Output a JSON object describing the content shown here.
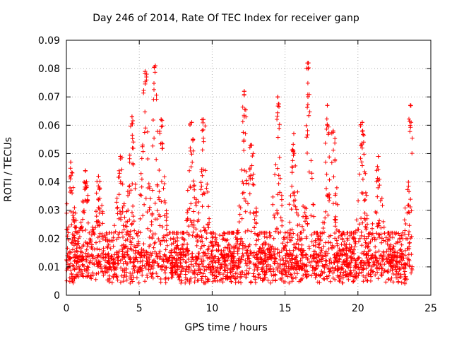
{
  "chart_data": {
    "type": "scatter",
    "title": "Day 246 of 2014, Rate Of TEC Index for receiver ganp",
    "xlabel": "GPS time / hours",
    "ylabel": "ROTI / TECUs",
    "xlim": [
      0,
      25
    ],
    "ylim": [
      0,
      0.09
    ],
    "xticks": [
      0,
      5,
      10,
      15,
      20,
      25
    ],
    "xtick_labels": [
      "0",
      "5",
      "10",
      "15",
      "20",
      "25"
    ],
    "yticks": [
      0,
      0.01,
      0.02,
      0.03,
      0.04,
      0.05,
      0.06,
      0.07,
      0.08,
      0.09
    ],
    "ytick_labels": [
      "0",
      "0.01",
      "0.02",
      "0.03",
      "0.04",
      "0.05",
      "0.06",
      "0.07",
      "0.08",
      "0.09"
    ],
    "grid": true,
    "marker": "+",
    "color": "#ff0000",
    "series": [
      {
        "name": "ROTI",
        "x_range": [
          0,
          23.75
        ],
        "baseline_median": 0.012,
        "peaks": [
          {
            "x": 0.3,
            "y": 0.047
          },
          {
            "x": 1.3,
            "y": 0.044
          },
          {
            "x": 2.2,
            "y": 0.042
          },
          {
            "x": 3.7,
            "y": 0.049
          },
          {
            "x": 4.5,
            "y": 0.063
          },
          {
            "x": 5.4,
            "y": 0.079
          },
          {
            "x": 6.1,
            "y": 0.081
          },
          {
            "x": 6.5,
            "y": 0.062
          },
          {
            "x": 8.6,
            "y": 0.061
          },
          {
            "x": 9.4,
            "y": 0.062
          },
          {
            "x": 12.2,
            "y": 0.072
          },
          {
            "x": 12.7,
            "y": 0.053
          },
          {
            "x": 14.5,
            "y": 0.07
          },
          {
            "x": 15.6,
            "y": 0.057
          },
          {
            "x": 16.6,
            "y": 0.082
          },
          {
            "x": 17.9,
            "y": 0.067
          },
          {
            "x": 18.3,
            "y": 0.058
          },
          {
            "x": 20.3,
            "y": 0.061
          },
          {
            "x": 21.4,
            "y": 0.049
          },
          {
            "x": 23.6,
            "y": 0.067
          }
        ]
      }
    ]
  }
}
